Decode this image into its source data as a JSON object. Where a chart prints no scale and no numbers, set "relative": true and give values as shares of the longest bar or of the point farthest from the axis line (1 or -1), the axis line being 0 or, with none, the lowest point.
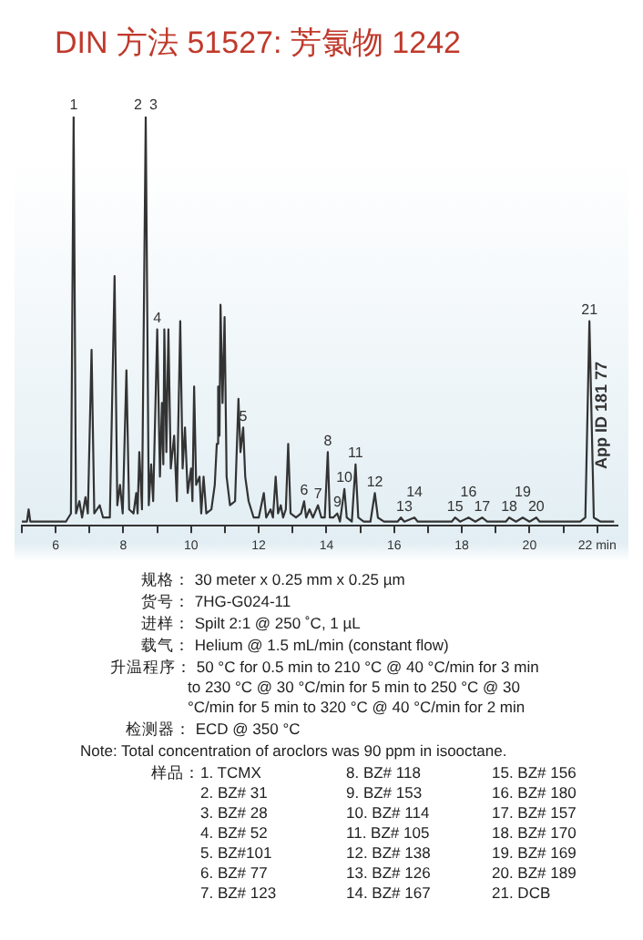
{
  "chart_data": {
    "type": "line",
    "title": "DIN 方法 51527: 芳氯物 1242",
    "relative": true,
    "legend": false,
    "grid": false,
    "marker": "none",
    "line_style": "solid",
    "xlim": [
      5,
      22.6
    ],
    "xticks": [
      {
        "value": 5,
        "label": null
      },
      6,
      {
        "value": 7,
        "label": null
      },
      8,
      {
        "value": 9,
        "label": null
      },
      10,
      {
        "value": 11,
        "label": null
      },
      12,
      {
        "value": 13,
        "label": null
      },
      14,
      {
        "value": 15,
        "label": null
      },
      16,
      {
        "value": 17,
        "label": null
      },
      18,
      {
        "value": 19,
        "label": null
      },
      20,
      {
        "value": 21,
        "label": null
      },
      {
        "value": 22,
        "label": "22 min"
      }
    ],
    "series": [
      {
        "color": "#333333",
        "x": [
          5.0,
          5.15,
          5.2,
          5.25,
          5.5,
          6.3,
          6.45,
          6.53,
          6.6,
          6.7,
          6.78,
          6.88,
          6.95,
          7.06,
          7.14,
          7.3,
          7.4,
          7.6,
          7.74,
          7.82,
          7.9,
          7.98,
          8.09,
          8.17,
          8.3,
          8.38,
          8.42,
          8.47,
          8.55,
          8.66,
          8.75,
          8.82,
          8.88,
          9.0,
          9.08,
          9.14,
          9.18,
          9.21,
          9.27,
          9.33,
          9.4,
          9.5,
          9.58,
          9.68,
          9.75,
          9.82,
          9.9,
          10.0,
          10.04,
          10.09,
          10.15,
          10.25,
          10.3,
          10.37,
          10.45,
          10.6,
          10.7,
          10.76,
          10.8,
          10.84,
          10.87,
          10.93,
          10.99,
          11.05,
          11.15,
          11.3,
          11.4,
          11.46,
          11.54,
          11.6,
          11.7,
          11.85,
          12.0,
          12.15,
          12.22,
          12.35,
          12.42,
          12.5,
          12.57,
          12.65,
          12.72,
          12.8,
          12.87,
          12.94,
          13.1,
          13.25,
          13.34,
          13.4,
          13.5,
          13.6,
          13.75,
          13.85,
          13.95,
          14.04,
          14.1,
          14.2,
          14.32,
          14.4,
          14.53,
          14.6,
          14.75,
          14.86,
          14.94,
          15.1,
          15.3,
          15.43,
          15.52,
          15.7,
          16.1,
          16.2,
          16.3,
          16.6,
          16.7,
          16.8,
          17.7,
          17.8,
          17.95,
          18.2,
          18.4,
          18.6,
          18.75,
          19.3,
          19.4,
          19.6,
          19.8,
          20.0,
          20.2,
          20.3,
          21.5,
          21.65,
          21.77,
          21.9,
          22.1,
          22.5
        ],
        "values": [
          0.01,
          0.01,
          0.04,
          0.01,
          0.01,
          0.01,
          0.03,
          1.0,
          0.03,
          0.06,
          0.02,
          0.07,
          0.03,
          0.43,
          0.03,
          0.05,
          0.02,
          0.02,
          0.61,
          0.05,
          0.1,
          0.03,
          0.38,
          0.04,
          0.03,
          0.08,
          0.03,
          0.18,
          0.04,
          1.0,
          0.05,
          0.15,
          0.06,
          0.48,
          0.12,
          0.3,
          0.15,
          0.48,
          0.18,
          0.48,
          0.14,
          0.22,
          0.06,
          0.5,
          0.14,
          0.24,
          0.08,
          0.14,
          0.06,
          0.34,
          0.1,
          0.12,
          0.03,
          0.12,
          0.03,
          0.04,
          0.1,
          0.2,
          0.34,
          0.22,
          0.54,
          0.3,
          0.51,
          0.12,
          0.05,
          0.06,
          0.31,
          0.18,
          0.24,
          0.12,
          0.06,
          0.02,
          0.02,
          0.08,
          0.02,
          0.04,
          0.02,
          0.12,
          0.03,
          0.05,
          0.02,
          0.04,
          0.2,
          0.03,
          0.02,
          0.03,
          0.06,
          0.02,
          0.04,
          0.02,
          0.05,
          0.02,
          0.02,
          0.18,
          0.02,
          0.02,
          0.03,
          0.01,
          0.09,
          0.02,
          0.01,
          0.15,
          0.02,
          0.01,
          0.01,
          0.08,
          0.02,
          0.01,
          0.01,
          0.02,
          0.01,
          0.02,
          0.01,
          0.01,
          0.01,
          0.02,
          0.01,
          0.02,
          0.01,
          0.02,
          0.01,
          0.01,
          0.02,
          0.01,
          0.02,
          0.01,
          0.02,
          0.01,
          0.01,
          0.02,
          0.5,
          0.02,
          0.01,
          0.01
        ]
      }
    ],
    "annotations": [
      {
        "text": "1",
        "x": 6.53,
        "y": 1.0
      },
      {
        "text": "2",
        "x": 8.66,
        "y": 1.0
      },
      {
        "text": "3",
        "x": 8.66,
        "y": 1.0
      },
      {
        "text": "4",
        "x": 9.0,
        "y": 0.48
      },
      {
        "text": "5",
        "x": 11.54,
        "y": 0.24
      },
      {
        "text": "6",
        "x": 13.34,
        "y": 0.06
      },
      {
        "text": "7",
        "x": 13.75,
        "y": 0.05
      },
      {
        "text": "8",
        "x": 14.04,
        "y": 0.18
      },
      {
        "text": "9",
        "x": 14.32,
        "y": 0.03
      },
      {
        "text": "10",
        "x": 14.53,
        "y": 0.09
      },
      {
        "text": "11",
        "x": 14.86,
        "y": 0.15
      },
      {
        "text": "12",
        "x": 15.43,
        "y": 0.08
      },
      {
        "text": "13",
        "x": 16.3,
        "y": 0.02
      },
      {
        "text": "14",
        "x": 16.6,
        "y": 0.02
      },
      {
        "text": "15",
        "x": 17.8,
        "y": 0.02
      },
      {
        "text": "16",
        "x": 18.2,
        "y": 0.02
      },
      {
        "text": "17",
        "x": 18.6,
        "y": 0.02
      },
      {
        "text": "18",
        "x": 19.4,
        "y": 0.02
      },
      {
        "text": "19",
        "x": 19.8,
        "y": 0.02
      },
      {
        "text": "20",
        "x": 20.2,
        "y": 0.02
      },
      {
        "text": "21",
        "x": 21.77,
        "y": 0.5
      },
      "App ID 181 77",
      "规格： 30 meter x 0.25 mm x 0.25 µm",
      "货号： 7HG-G024-11",
      "进样： Spilt 2:1 @ 250 ˚C, 1 µL",
      "载气： Helium @ 1.5 mL/min (constant flow)",
      "升温程序： 50 °C for 0.5 min to 210 °C @ 40 °C/min for 3 min to 230 °C @ 30 °C/min for 5 min to 250 °C @ 30 °C/min for 5 min to 320 °C @ 40 °C/min for 2 min",
      "检测器： ECD @ 350 °C",
      "Note: Total concentration of aroclors was 90 ppm in isooctane.",
      "样品：",
      "1. TCMX",
      "2. BZ# 31",
      "3. BZ# 28",
      "4. BZ# 52",
      "5. BZ#101",
      "6. BZ# 77",
      "7. BZ# 123",
      "8. BZ# 118",
      "9. BZ# 153",
      "10. BZ# 114",
      "11. BZ# 105",
      "12. BZ# 138",
      "13. BZ# 126",
      "14. BZ# 167",
      "15. BZ# 156",
      "16. BZ# 180",
      "17. BZ# 157",
      "18. BZ# 170",
      "19. BZ# 169",
      "20. BZ# 189",
      "21. DCB"
    ]
  }
}
